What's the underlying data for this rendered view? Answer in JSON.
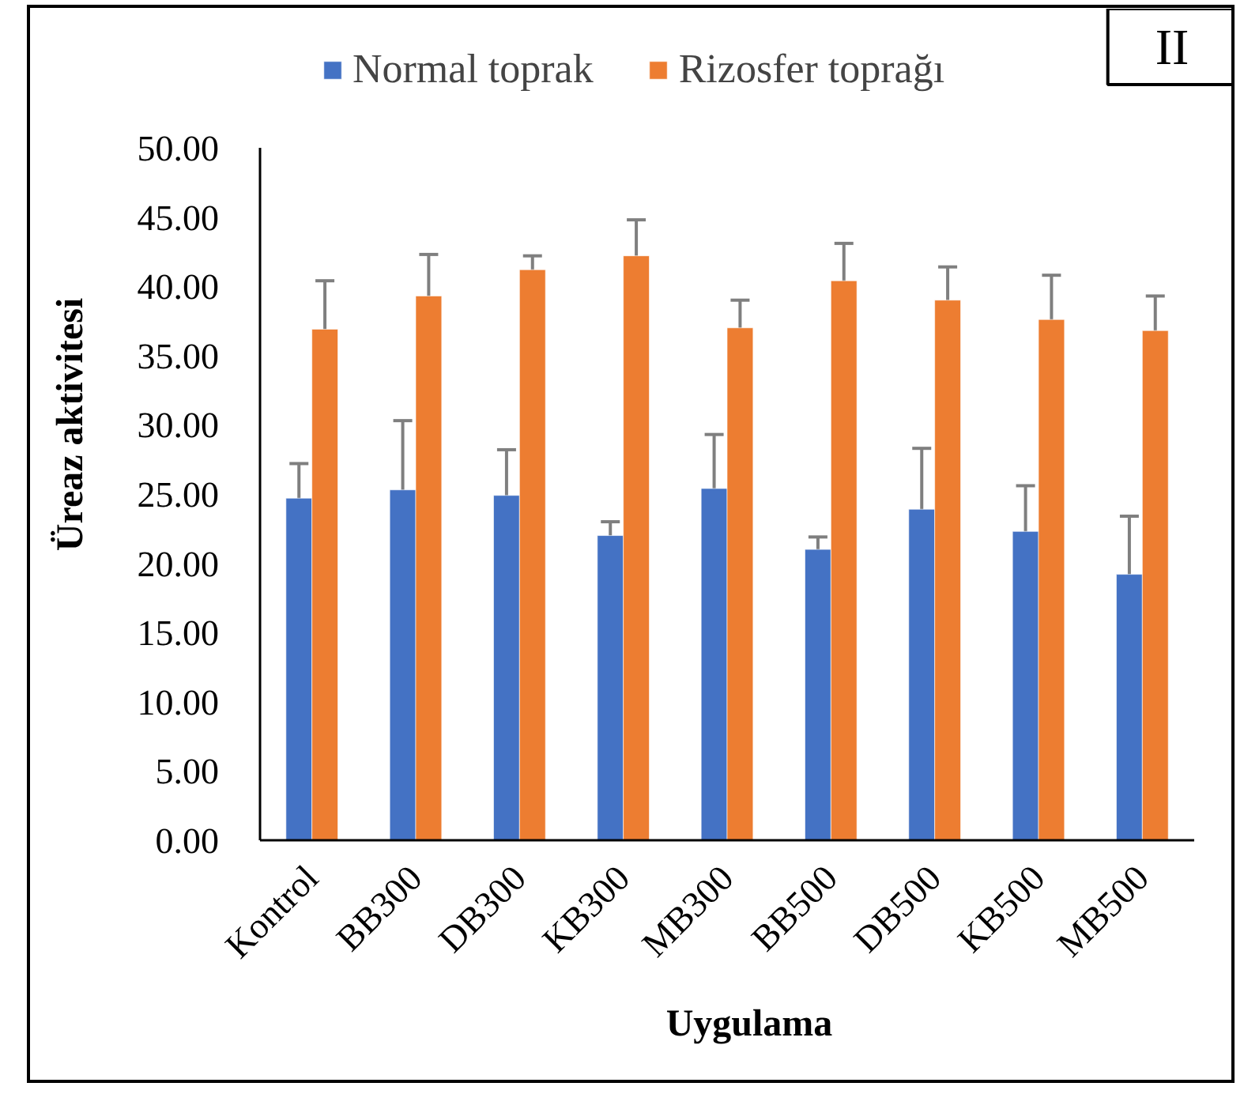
{
  "chart_data": {
    "type": "bar",
    "categories": [
      "Kontrol",
      "BB300",
      "DB300",
      "KB300",
      "MB300",
      "BB500",
      "DB500",
      "KB500",
      "MB500"
    ],
    "series": [
      {
        "name": "Normal toprak",
        "color": "#4472c4",
        "values": [
          24.7,
          25.3,
          24.9,
          22.0,
          25.4,
          21.0,
          23.9,
          22.3,
          19.2
        ],
        "errors": [
          2.5,
          5.0,
          3.3,
          1.0,
          3.9,
          0.9,
          4.4,
          3.3,
          4.2
        ]
      },
      {
        "name": "Rizosfer toprağı",
        "color": "#ed7d31",
        "values": [
          36.9,
          39.3,
          41.2,
          42.2,
          37.0,
          40.4,
          39.0,
          37.6,
          36.8
        ],
        "errors": [
          3.5,
          3.0,
          1.0,
          2.6,
          2.0,
          2.7,
          2.4,
          3.2,
          2.5
        ]
      }
    ],
    "xlabel": "Uygulama",
    "ylabel": "Üreaz aktivitesi",
    "ylim": [
      0,
      50
    ],
    "yticks": [
      {
        "value": 0,
        "label": "0.00"
      },
      {
        "value": 5,
        "label": "5.00"
      },
      {
        "value": 10,
        "label": "10.00"
      },
      {
        "value": 15,
        "label": "15.00"
      },
      {
        "value": 20,
        "label": "20.00"
      },
      {
        "value": 25,
        "label": "25.00"
      },
      {
        "value": 30,
        "label": "30.00"
      },
      {
        "value": 35,
        "label": "35.00"
      },
      {
        "value": 40,
        "label": "40.00"
      },
      {
        "value": 45,
        "label": "45.00"
      },
      {
        "value": 50,
        "label": "50.00"
      }
    ],
    "grid": false,
    "legend": "top",
    "annotations": [
      "II"
    ]
  }
}
